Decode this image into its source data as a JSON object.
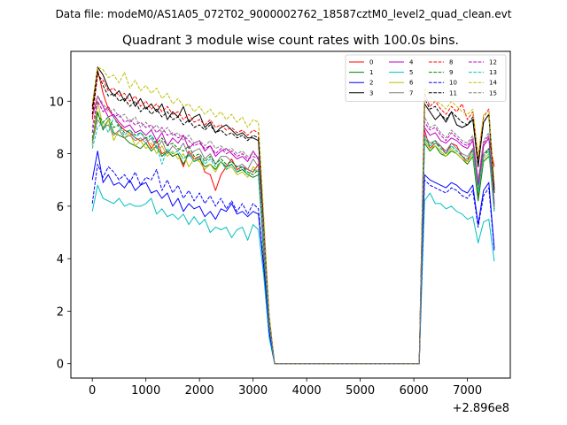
{
  "suptitle": "Data file: modeM0/AS1A05_072T02_9000002762_18587cztM0_level2_quad_clean.evt",
  "chart_data": {
    "type": "line",
    "title": "Quadrant 3 module wise count rates with 100.0s bins.",
    "xlabel": "",
    "ylabel": "",
    "x_offset_text": "+2.896e8",
    "xlim": [
      -400,
      7800
    ],
    "ylim": [
      -0.55,
      11.9
    ],
    "xticks": [
      0,
      1000,
      2000,
      3000,
      4000,
      5000,
      6000,
      7000
    ],
    "yticks": [
      0,
      2,
      4,
      6,
      8,
      10
    ],
    "legend_loc": "upper-right",
    "x": [
      0,
      100,
      200,
      300,
      400,
      500,
      600,
      700,
      800,
      900,
      1000,
      1100,
      1200,
      1300,
      1400,
      1500,
      1600,
      1700,
      1800,
      1900,
      2000,
      2100,
      2200,
      2300,
      2400,
      2500,
      2600,
      2700,
      2800,
      2900,
      3000,
      3100,
      3200,
      3300,
      3400,
      3500,
      6100,
      6200,
      6300,
      6400,
      6500,
      6600,
      6700,
      6800,
      6900,
      7000,
      7100,
      7200,
      7300,
      7400,
      7500
    ],
    "series": [
      {
        "name": "0",
        "color": "#ff0000",
        "dash": "solid",
        "values": [
          9.7,
          11.2,
          10.3,
          9.7,
          9.4,
          9.1,
          8.9,
          8.8,
          8.6,
          8.5,
          8.6,
          8.2,
          8.5,
          8.0,
          8.1,
          7.9,
          8.0,
          7.5,
          8.1,
          7.8,
          7.9,
          7.3,
          7.2,
          6.6,
          7.2,
          7.5,
          7.8,
          7.4,
          7.5,
          7.4,
          7.3,
          7.6,
          4.0,
          1.5,
          0.0,
          0.0,
          0.0,
          8.9,
          8.2,
          8.4,
          8.3,
          8.0,
          8.4,
          8.3,
          7.9,
          7.7,
          8.2,
          6.4,
          8.3,
          8.6,
          7.5
        ]
      },
      {
        "name": "1",
        "color": "#008000",
        "dash": "solid",
        "values": [
          8.5,
          9.6,
          8.9,
          9.3,
          8.8,
          8.7,
          8.6,
          8.4,
          8.3,
          8.2,
          8.4,
          8.1,
          8.3,
          7.9,
          8.1,
          7.9,
          8.0,
          7.6,
          8.0,
          7.7,
          7.8,
          7.5,
          7.6,
          7.4,
          7.7,
          7.5,
          7.6,
          7.3,
          7.4,
          7.2,
          7.1,
          7.2,
          4.2,
          1.5,
          0.0,
          0.0,
          0.0,
          8.4,
          8.1,
          8.3,
          8.0,
          7.9,
          8.1,
          8.0,
          7.8,
          7.6,
          7.9,
          6.2,
          7.7,
          7.9,
          6.8
        ]
      },
      {
        "name": "2",
        "color": "#0000ff",
        "dash": "solid",
        "values": [
          7.0,
          8.1,
          6.9,
          7.2,
          6.8,
          6.9,
          6.7,
          7.0,
          6.6,
          6.8,
          6.9,
          6.5,
          6.6,
          6.3,
          6.5,
          6.0,
          6.3,
          5.8,
          6.1,
          5.9,
          6.0,
          5.6,
          5.8,
          5.5,
          5.9,
          5.8,
          6.1,
          5.7,
          5.8,
          5.6,
          5.8,
          5.7,
          3.6,
          1.2,
          0.0,
          0.0,
          0.0,
          7.2,
          7.0,
          6.9,
          6.8,
          6.7,
          6.9,
          6.8,
          6.6,
          6.5,
          6.8,
          5.3,
          6.6,
          6.9,
          4.4
        ]
      },
      {
        "name": "3",
        "color": "#000000",
        "dash": "solid",
        "values": [
          9.8,
          11.3,
          11.0,
          10.5,
          10.2,
          10.4,
          10.0,
          10.3,
          9.8,
          10.1,
          9.7,
          9.9,
          9.6,
          9.9,
          9.3,
          9.6,
          9.4,
          9.8,
          9.2,
          9.4,
          9.5,
          9.0,
          9.2,
          8.8,
          9.0,
          9.1,
          8.9,
          8.7,
          8.8,
          8.6,
          8.6,
          8.5,
          5.2,
          1.8,
          0.0,
          0.0,
          0.0,
          9.9,
          9.6,
          9.3,
          9.5,
          9.2,
          9.6,
          9.1,
          9.0,
          9.1,
          9.3,
          7.5,
          9.2,
          9.5,
          6.6
        ]
      },
      {
        "name": "4",
        "color": "#bf00bf",
        "dash": "solid",
        "values": [
          9.4,
          10.2,
          9.8,
          9.4,
          9.5,
          9.2,
          9.0,
          9.1,
          8.8,
          8.9,
          8.7,
          8.9,
          8.5,
          8.8,
          8.3,
          8.6,
          8.4,
          8.7,
          8.2,
          8.4,
          8.5,
          8.1,
          8.3,
          7.9,
          8.1,
          8.2,
          8.0,
          7.8,
          7.9,
          7.7,
          8.1,
          7.8,
          4.7,
          1.6,
          0.0,
          0.0,
          0.0,
          9.0,
          8.7,
          8.8,
          8.5,
          8.4,
          8.6,
          8.5,
          8.3,
          8.2,
          8.5,
          6.8,
          8.3,
          8.6,
          6.0
        ]
      },
      {
        "name": "5",
        "color": "#00bfbf",
        "dash": "solid",
        "values": [
          5.8,
          6.8,
          6.3,
          6.2,
          6.1,
          6.3,
          6.0,
          6.1,
          6.0,
          6.0,
          6.1,
          6.3,
          5.7,
          5.9,
          5.6,
          5.7,
          5.5,
          5.7,
          5.3,
          5.6,
          5.3,
          5.5,
          5.0,
          5.2,
          5.1,
          5.2,
          4.8,
          5.1,
          5.2,
          4.7,
          5.3,
          5.1,
          3.3,
          1.0,
          0.0,
          0.0,
          0.0,
          6.2,
          6.5,
          6.1,
          6.1,
          5.9,
          6.0,
          5.8,
          5.7,
          5.5,
          5.6,
          4.6,
          5.4,
          5.5,
          3.9
        ]
      },
      {
        "name": "6",
        "color": "#bfbf00",
        "dash": "solid",
        "values": [
          8.3,
          10.0,
          9.0,
          9.3,
          8.5,
          8.9,
          8.6,
          8.8,
          8.3,
          8.5,
          8.2,
          8.4,
          8.0,
          8.3,
          7.9,
          8.1,
          7.8,
          8.0,
          7.5,
          7.8,
          7.7,
          7.4,
          7.6,
          7.3,
          7.7,
          7.4,
          7.5,
          7.2,
          7.3,
          7.1,
          7.5,
          7.3,
          4.3,
          1.5,
          0.0,
          0.0,
          0.0,
          8.5,
          8.2,
          8.3,
          8.1,
          7.9,
          8.2,
          8.0,
          7.8,
          7.7,
          8.0,
          6.5,
          7.8,
          8.0,
          5.8
        ]
      },
      {
        "name": "7",
        "color": "#808080",
        "dash": "solid",
        "values": [
          8.4,
          9.3,
          9.0,
          9.1,
          8.7,
          8.9,
          8.6,
          8.7,
          8.5,
          8.6,
          8.4,
          8.6,
          8.2,
          8.5,
          8.0,
          8.3,
          8.1,
          8.4,
          7.9,
          8.1,
          8.2,
          7.8,
          8.0,
          7.6,
          7.9,
          7.9,
          7.7,
          7.5,
          7.6,
          7.4,
          7.8,
          7.5,
          4.5,
          1.6,
          0.0,
          0.0,
          0.0,
          8.7,
          8.4,
          8.5,
          8.3,
          8.1,
          8.4,
          8.2,
          8.0,
          7.9,
          8.2,
          6.6,
          8.0,
          8.2,
          5.9
        ]
      },
      {
        "name": "8",
        "color": "#ff0000",
        "dash": "dashed",
        "values": [
          9.3,
          11.0,
          10.8,
          10.4,
          10.5,
          10.2,
          10.3,
          10.0,
          10.2,
          9.8,
          10.0,
          9.7,
          9.9,
          9.6,
          9.8,
          9.5,
          9.6,
          9.3,
          9.5,
          9.2,
          9.3,
          9.1,
          9.3,
          9.0,
          9.1,
          8.9,
          9.0,
          8.8,
          8.9,
          8.7,
          8.9,
          8.8,
          5.3,
          1.8,
          0.0,
          0.0,
          0.0,
          10.3,
          9.8,
          10.0,
          9.7,
          9.5,
          9.8,
          9.6,
          9.9,
          9.3,
          9.6,
          7.8,
          9.4,
          9.7,
          6.7
        ]
      },
      {
        "name": "9",
        "color": "#008000",
        "dash": "dashed",
        "values": [
          8.6,
          9.5,
          9.2,
          9.4,
          9.0,
          9.1,
          8.8,
          8.9,
          8.7,
          8.8,
          8.6,
          8.7,
          8.4,
          8.6,
          8.3,
          8.4,
          8.2,
          8.1,
          8.3,
          7.9,
          8.0,
          7.7,
          7.9,
          7.6,
          7.8,
          7.6,
          7.7,
          7.5,
          7.5,
          7.3,
          7.2,
          7.4,
          4.4,
          1.5,
          0.0,
          0.0,
          0.0,
          8.6,
          8.3,
          8.5,
          8.2,
          8.0,
          8.3,
          8.1,
          7.9,
          7.8,
          8.1,
          6.5,
          7.9,
          8.2,
          5.9
        ]
      },
      {
        "name": "10",
        "color": "#0000ff",
        "dash": "dashed",
        "values": [
          6.1,
          7.6,
          7.1,
          7.5,
          7.3,
          7.0,
          7.2,
          6.9,
          7.3,
          6.8,
          7.1,
          7.0,
          7.4,
          6.6,
          7.0,
          6.5,
          6.8,
          6.3,
          6.6,
          6.2,
          6.5,
          6.1,
          6.4,
          6.0,
          6.3,
          5.9,
          6.2,
          5.8,
          6.1,
          5.7,
          6.1,
          5.9,
          3.7,
          1.2,
          0.0,
          0.0,
          0.0,
          7.0,
          6.8,
          6.7,
          6.6,
          6.5,
          6.7,
          6.6,
          6.4,
          6.3,
          6.6,
          5.2,
          6.4,
          6.7,
          4.3
        ]
      },
      {
        "name": "11",
        "color": "#000000",
        "dash": "dashed",
        "values": [
          9.5,
          11.1,
          10.6,
          10.2,
          10.3,
          10.0,
          10.1,
          9.8,
          10.0,
          9.6,
          9.8,
          9.5,
          9.7,
          9.4,
          9.6,
          9.3,
          9.4,
          9.1,
          9.3,
          9.0,
          9.1,
          8.9,
          9.1,
          8.8,
          8.9,
          8.7,
          8.8,
          8.6,
          8.7,
          8.5,
          8.7,
          8.6,
          5.1,
          1.7,
          0.0,
          0.0,
          0.0,
          10.1,
          9.7,
          9.8,
          9.5,
          9.3,
          9.6,
          9.4,
          9.2,
          9.1,
          9.4,
          7.6,
          9.2,
          9.5,
          6.5
        ]
      },
      {
        "name": "12",
        "color": "#bf00bf",
        "dash": "dashed",
        "values": [
          8.8,
          10.0,
          9.6,
          9.8,
          9.4,
          9.5,
          9.2,
          9.3,
          9.1,
          9.2,
          9.0,
          9.1,
          8.8,
          9.0,
          8.7,
          8.8,
          8.6,
          8.7,
          8.5,
          8.3,
          8.4,
          8.2,
          8.3,
          8.0,
          8.2,
          8.0,
          8.1,
          7.9,
          8.0,
          7.8,
          7.9,
          7.8,
          4.8,
          1.6,
          0.0,
          0.0,
          0.0,
          9.2,
          8.9,
          9.0,
          8.7,
          8.5,
          8.8,
          8.6,
          8.4,
          8.3,
          8.6,
          6.9,
          8.4,
          8.7,
          6.1
        ]
      },
      {
        "name": "13",
        "color": "#00bfbf",
        "dash": "dashed",
        "values": [
          8.2,
          9.0,
          9.2,
          8.8,
          9.4,
          9.0,
          8.7,
          8.9,
          8.6,
          8.8,
          8.5,
          8.7,
          8.3,
          7.6,
          8.2,
          8.0,
          8.1,
          7.8,
          8.0,
          7.7,
          7.9,
          7.6,
          7.8,
          7.5,
          7.7,
          7.4,
          7.6,
          7.3,
          7.5,
          7.2,
          7.4,
          7.3,
          4.4,
          1.5,
          0.0,
          0.0,
          0.0,
          8.6,
          8.3,
          8.4,
          8.2,
          8.0,
          8.3,
          8.1,
          7.9,
          7.8,
          8.1,
          6.5,
          7.9,
          8.1,
          5.8
        ]
      },
      {
        "name": "14",
        "color": "#bfbf00",
        "dash": "dashed",
        "values": [
          9.9,
          11.3,
          11.2,
          10.9,
          11.0,
          10.7,
          11.1,
          10.5,
          10.8,
          10.4,
          10.6,
          10.3,
          10.5,
          10.1,
          10.3,
          9.9,
          10.1,
          9.8,
          9.9,
          9.6,
          9.8,
          9.5,
          9.7,
          9.4,
          9.6,
          9.3,
          9.5,
          9.2,
          9.4,
          9.0,
          9.3,
          9.2,
          5.6,
          1.9,
          0.0,
          0.0,
          0.0,
          10.5,
          10.2,
          10.0,
          9.9,
          9.7,
          10.0,
          9.8,
          9.6,
          9.5,
          9.7,
          7.9,
          9.5,
          9.6,
          6.9
        ]
      },
      {
        "name": "15",
        "color": "#808080",
        "dash": "dashed",
        "values": [
          9.0,
          10.2,
          9.9,
          9.6,
          9.7,
          9.4,
          9.5,
          9.2,
          9.4,
          9.0,
          9.2,
          8.9,
          9.1,
          8.8,
          9.0,
          8.7,
          8.8,
          8.5,
          8.7,
          8.4,
          8.5,
          8.3,
          8.5,
          8.2,
          8.3,
          8.1,
          8.2,
          8.0,
          8.1,
          7.9,
          8.0,
          7.9,
          4.9,
          1.6,
          0.0,
          0.0,
          0.0,
          9.4,
          9.0,
          9.1,
          8.8,
          8.6,
          8.9,
          8.7,
          8.5,
          8.4,
          8.7,
          7.0,
          8.5,
          8.8,
          6.2
        ]
      }
    ]
  }
}
